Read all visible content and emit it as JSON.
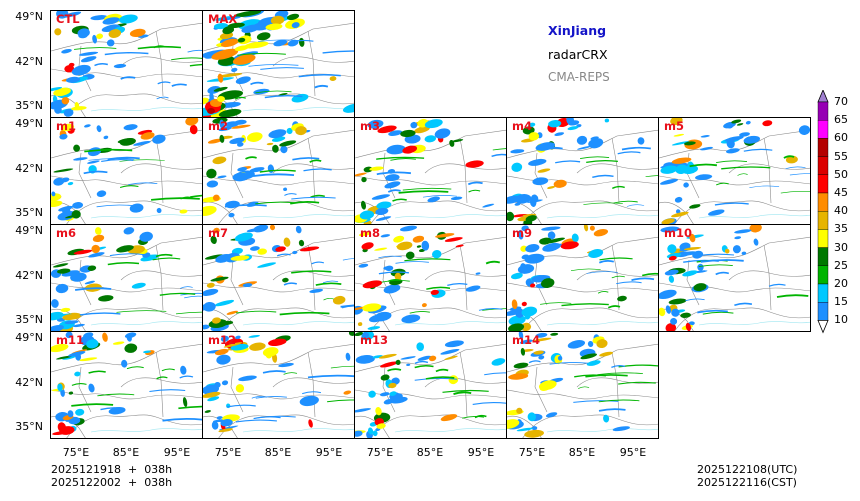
{
  "title": {
    "region": "XinJiang",
    "product": "radarCRX",
    "model": "CMA-REPS"
  },
  "colors": {
    "region": "#1414c8",
    "label": "#e8101c",
    "model": "#888888"
  },
  "panels": [
    {
      "label": "CTL",
      "seed": 1
    },
    {
      "label": "MAX",
      "seed": 2
    },
    {
      "label": "m1",
      "seed": 3
    },
    {
      "label": "m2",
      "seed": 4
    },
    {
      "label": "m3",
      "seed": 5
    },
    {
      "label": "m4",
      "seed": 6
    },
    {
      "label": "m5",
      "seed": 7
    },
    {
      "label": "m6",
      "seed": 8
    },
    {
      "label": "m7",
      "seed": 9
    },
    {
      "label": "m8",
      "seed": 10
    },
    {
      "label": "m9",
      "seed": 11
    },
    {
      "label": "m10",
      "seed": 12
    },
    {
      "label": "m11",
      "seed": 13
    },
    {
      "label": "m12",
      "seed": 14
    },
    {
      "label": "m13",
      "seed": 15
    },
    {
      "label": "m14",
      "seed": 16
    }
  ],
  "lat_ticks": [
    "49°N",
    "42°N",
    "35°N"
  ],
  "lon_ticks": [
    "75°E",
    "85°E",
    "95°E"
  ],
  "init": {
    "line1": "2025121918  +  038h",
    "line2": "2025122002  +  038h"
  },
  "valid": {
    "utc": "2025122108(UTC)",
    "cst": "2025122116(CST)"
  },
  "colorbar": {
    "levels": [
      "10",
      "15",
      "20",
      "25",
      "30",
      "35",
      "40",
      "45",
      "50",
      "55",
      "60",
      "65",
      "70"
    ],
    "colors": [
      "#1e90ff",
      "#00c8ff",
      "#00b400",
      "#007800",
      "#ffff00",
      "#e6b400",
      "#ff8c00",
      "#ff0000",
      "#dc0000",
      "#b40000",
      "#ff00ff",
      "#9600b4",
      "#a080d0"
    ],
    "under": "#ffffff"
  }
}
